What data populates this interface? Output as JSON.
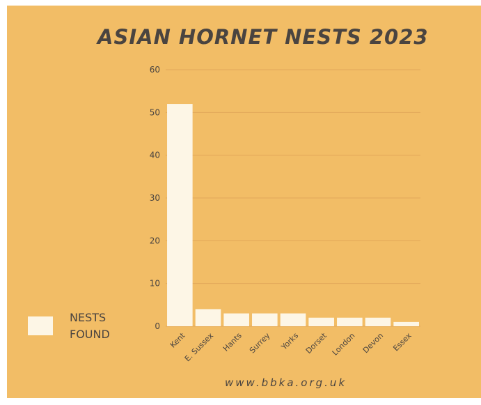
{
  "chart_data": {
    "type": "bar",
    "title": "ASIAN HORNET NESTS 2023",
    "categories": [
      "Kent",
      "E. Sussex",
      "Hants",
      "Surrey",
      "Yorks",
      "Dorset",
      "London",
      "Devon",
      "Essex"
    ],
    "series": [
      {
        "name": "NESTS FOUND",
        "values": [
          52,
          4,
          3,
          3,
          3,
          2,
          2,
          2,
          1
        ]
      }
    ],
    "yticks": [
      0,
      10,
      20,
      30,
      40,
      50,
      60
    ],
    "ylim": [
      0,
      60
    ],
    "grid": true,
    "legend": "bottom-left",
    "xlabel": "",
    "ylabel": ""
  },
  "colors": {
    "background": "#f2bd66",
    "bar": "#fdf6e6",
    "grid": "#e2a75a",
    "text": "#4a4440"
  },
  "footer": {
    "source": "www.bbka.org.uk"
  }
}
